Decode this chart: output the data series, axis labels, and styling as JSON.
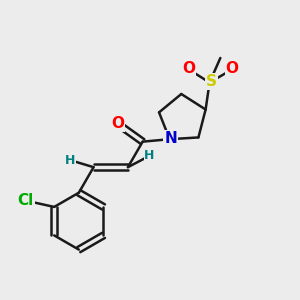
{
  "bg_color": "#ececec",
  "bond_color": "#1a1a1a",
  "bond_width": 1.8,
  "atom_colors": {
    "O": "#ff0000",
    "N": "#0000cc",
    "S": "#cccc00",
    "Cl": "#00aa00",
    "C": "#1a1a1a",
    "H": "#008080"
  },
  "font_size_atom": 11,
  "font_size_h": 9,
  "xlim": [
    0.0,
    6.0
  ],
  "ylim": [
    0.0,
    6.0
  ]
}
